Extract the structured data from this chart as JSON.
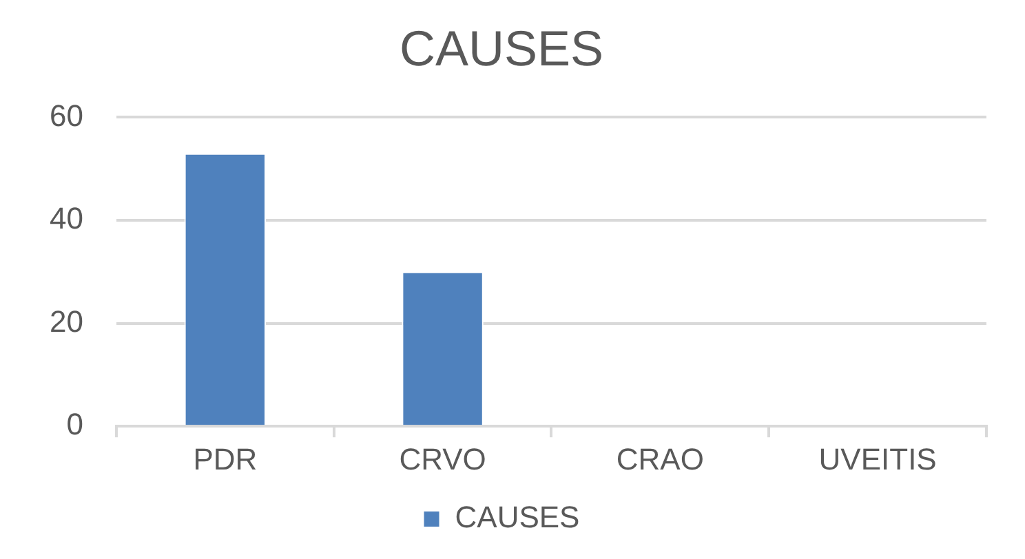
{
  "chart_data": {
    "type": "bar",
    "title": "CAUSES",
    "categories": [
      "PDR",
      "CRVO",
      "CRAO",
      "UVEITIS"
    ],
    "series": [
      {
        "name": "CAUSES",
        "color": "#4f81bd",
        "values": [
          53,
          30,
          0,
          0
        ]
      }
    ],
    "ylim": [
      0,
      60
    ],
    "yticks": [
      0,
      20,
      40,
      60
    ],
    "grid": "y",
    "legend": "bottom"
  }
}
